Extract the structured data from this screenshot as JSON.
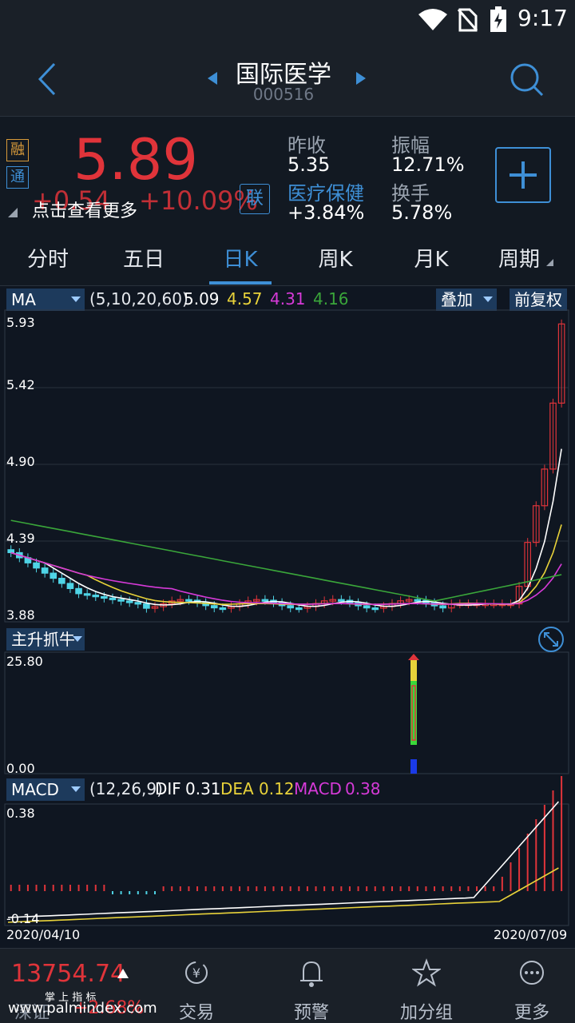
{
  "status": {
    "time": "9:17"
  },
  "header": {
    "title": "国际医学",
    "code": "000516"
  },
  "quote": {
    "price": "5.89",
    "change": "+0.54",
    "change_pct": "+10.09%",
    "badge_rong": "融",
    "badge_tong": "通",
    "badge_lian": "联",
    "hint": "点击查看更多",
    "prev_close_label": "昨收",
    "prev_close": "5.35",
    "sector": "医疗保健",
    "sector_pct": "+3.84%",
    "amplitude_label": "振幅",
    "amplitude": "12.71%",
    "turnover_label": "换手",
    "turnover": "5.78%"
  },
  "tabs": [
    "分时",
    "五日",
    "日K",
    "周K",
    "月K",
    "周期"
  ],
  "active_tab": "日K",
  "ma_bar": {
    "selector": "MA",
    "params": "(5,10,20,60)",
    "v5": "5.09",
    "v10": "4.57",
    "v20": "4.31",
    "v60": "4.16",
    "overlay": "叠加",
    "adjust": "前复权"
  },
  "kline_axis": {
    "y1": "5.93",
    "y2": "5.42",
    "y3": "4.90",
    "y4": "4.39",
    "y5": "3.88"
  },
  "indicator": {
    "name": "主升抓牛",
    "top": "25.80",
    "bottom": "0.00"
  },
  "macd_bar": {
    "selector": "MACD",
    "params": "(12,26,9)",
    "dif_label": "DIF",
    "dif": "0.31",
    "dea_label": "DEA",
    "dea": "0.12",
    "macd_label": "MACD",
    "macd": "0.38",
    "top": "0.38",
    "bottom": "-0.14",
    "date_start": "2020/04/10",
    "date_end": "2020/07/09"
  },
  "bottom": {
    "index_value": "13754.74",
    "index_name": "深证",
    "index_pct": "+2.68%",
    "tip": "掌 上 指 标",
    "watermark": "www.palmindex.com",
    "nav": [
      "交易",
      "预警",
      "加分组",
      "更多"
    ]
  },
  "colors": {
    "up": "#e0343a",
    "down": "#4fd4e6",
    "ma5": "#ffffff",
    "ma10": "#e8d23a",
    "ma20": "#d63ad8",
    "ma60": "#3aa63a",
    "accent": "#3e8fd6"
  }
}
